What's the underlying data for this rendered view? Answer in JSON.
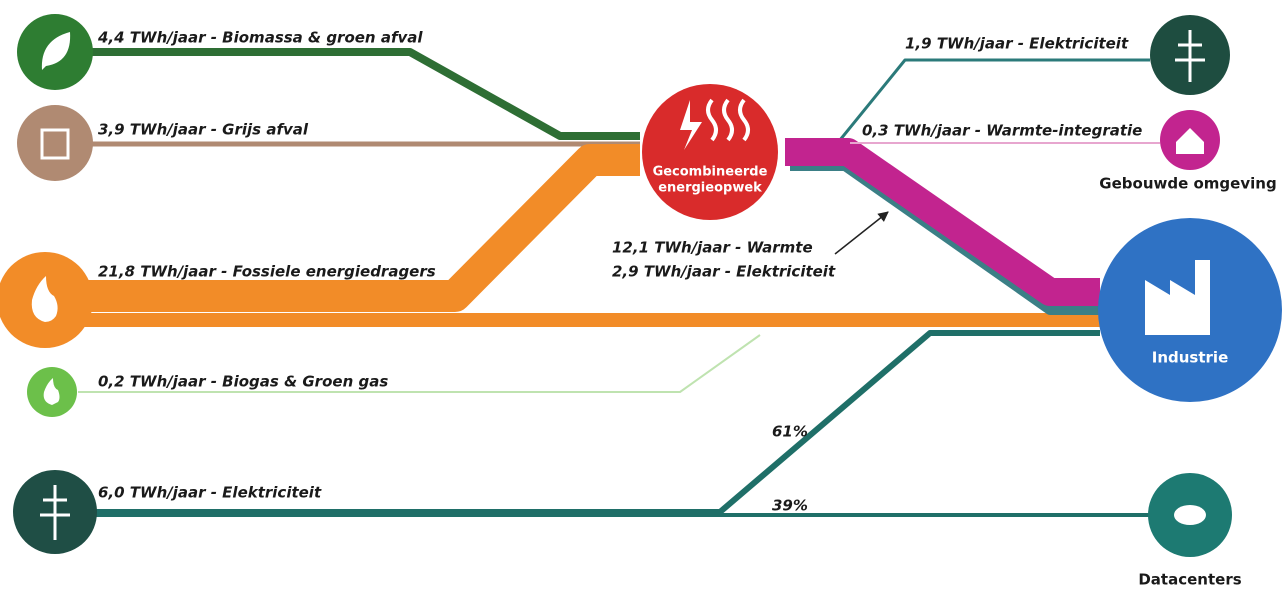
{
  "inputs": [
    {
      "label": "4,4 TWh/jaar - Biomassa & groen afval"
    },
    {
      "label": "3,9 TWh/jaar - Grijs afval"
    },
    {
      "label": "21,8 TWh/jaar - Fossiele energiedragers"
    },
    {
      "label": "0,2 TWh/jaar - Biogas & Groen gas"
    },
    {
      "label": "6,0 TWh/jaar - Elektriciteit"
    }
  ],
  "center": {
    "lines": [
      "Gecombineerde",
      "energieopwek"
    ]
  },
  "center_outputs": [
    "12,1 TWh/jaar - Warmte",
    "2,9 TWh/jaar - Elektriciteit"
  ],
  "outputs": [
    {
      "label": "1,9 TWh/jaar - Elektriciteit"
    },
    {
      "label": "0,3 TWh/jaar - Warmte-integratie"
    }
  ],
  "sinks": [
    "Gebouwde omgeving",
    "Industrie",
    "Datacenters"
  ],
  "split": [
    "61%",
    "39%"
  ]
}
